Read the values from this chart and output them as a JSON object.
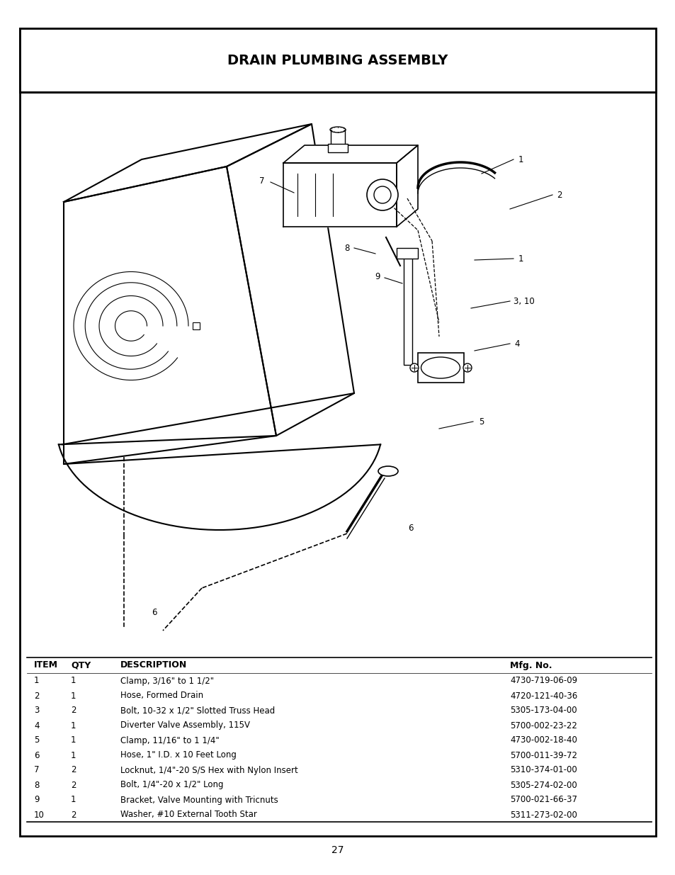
{
  "title": "DRAIN PLUMBING ASSEMBLY",
  "page_number": "27",
  "outer_border_color": "#000000",
  "inner_border_color": "#000000",
  "background_color": "#ffffff",
  "table_headers": [
    "ITEM",
    "QTY",
    "DESCRIPTION",
    "Mfg. No."
  ],
  "table_rows": [
    [
      "1",
      "1",
      "Clamp, 3/16\" to 1 1/2\"",
      "4730-719-06-09"
    ],
    [
      "2",
      "1",
      "Hose, Formed Drain",
      "4720-121-40-36"
    ],
    [
      "3",
      "2",
      "Bolt, 10-32 x 1/2\" Slotted Truss Head",
      "5305-173-04-00"
    ],
    [
      "4",
      "1",
      "Diverter Valve Assembly, 115V",
      "5700-002-23-22"
    ],
    [
      "5",
      "1",
      "Clamp, 11/16\" to 1 1/4\"",
      "4730-002-18-40"
    ],
    [
      "6",
      "1",
      "Hose, 1\" I.D. x 10 Feet Long",
      "5700-011-39-72"
    ],
    [
      "7",
      "2",
      "Locknut, 1/4\"-20 S/S Hex with Nylon Insert",
      "5310-374-01-00"
    ],
    [
      "8",
      "2",
      "Bolt, 1/4\"-20 x 1/2\" Long",
      "5305-274-02-00"
    ],
    [
      "9",
      "1",
      "Bracket, Valve Mounting with Tricnuts",
      "5700-021-66-37"
    ],
    [
      "10",
      "2",
      "Washer, #10 External Tooth Star",
      "5311-273-02-00"
    ]
  ],
  "diagram_image_path": null,
  "title_fontsize": 14,
  "table_header_fontsize": 9,
  "table_row_fontsize": 8.5,
  "page_num_fontsize": 10
}
